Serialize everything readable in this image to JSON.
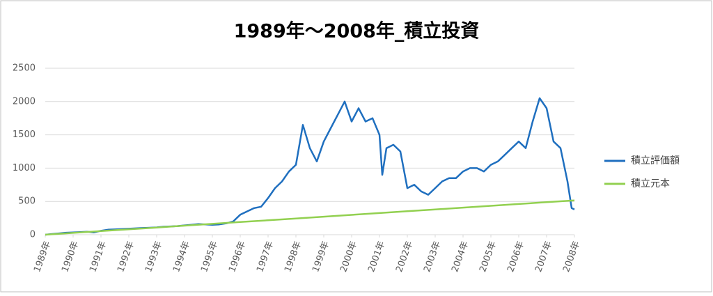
{
  "chart_data": {
    "type": "line",
    "title": "1989年～2008年_積立投資",
    "xlim": [
      1989,
      2008
    ],
    "xticks": [
      {
        "value": 1989,
        "label": "1989年"
      },
      {
        "value": 1990,
        "label": "1990年"
      },
      {
        "value": 1991,
        "label": "1991年"
      },
      {
        "value": 1992,
        "label": "1992年"
      },
      {
        "value": 1993,
        "label": "1993年"
      },
      {
        "value": 1994,
        "label": "1994年"
      },
      {
        "value": 1995,
        "label": "1995年"
      },
      {
        "value": 1996,
        "label": "1996年"
      },
      {
        "value": 1997,
        "label": "1997年"
      },
      {
        "value": 1998,
        "label": "1998年"
      },
      {
        "value": 1999,
        "label": "1999年"
      },
      {
        "value": 2000,
        "label": "2000年"
      },
      {
        "value": 2001,
        "label": "2001年"
      },
      {
        "value": 2002,
        "label": "2002年"
      },
      {
        "value": 2003,
        "label": "2003年"
      },
      {
        "value": 2004,
        "label": "2004年"
      },
      {
        "value": 2005,
        "label": "2005年"
      },
      {
        "value": 2006,
        "label": "2006年"
      },
      {
        "value": 2007,
        "label": "2007年"
      },
      {
        "value": 2008,
        "label": "2008年"
      }
    ],
    "ylim": [
      0,
      2500
    ],
    "yticks": [
      0,
      500,
      1000,
      1500,
      2000,
      2500
    ],
    "grid": true,
    "legend": "right",
    "series": [
      {
        "name": "積立評価額",
        "color": "#1f6fbf",
        "x": [
          1989,
          1989.25,
          1989.5,
          1989.75,
          1990,
          1990.25,
          1990.5,
          1990.75,
          1991,
          1991.25,
          1991.5,
          1991.75,
          1992,
          1992.25,
          1992.5,
          1992.75,
          1993,
          1993.25,
          1993.5,
          1993.75,
          1994,
          1994.25,
          1994.5,
          1994.75,
          1995,
          1995.25,
          1995.5,
          1995.75,
          1996,
          1996.25,
          1996.5,
          1996.75,
          1997,
          1997.25,
          1997.5,
          1997.75,
          1998,
          1998.25,
          1998.5,
          1998.75,
          1999,
          1999.25,
          1999.5,
          1999.75,
          2000,
          2000.25,
          2000.5,
          2000.75,
          2001,
          2001.1,
          2001.25,
          2001.5,
          2001.75,
          2002,
          2002.25,
          2002.5,
          2002.75,
          2003,
          2003.25,
          2003.5,
          2003.75,
          2004,
          2004.25,
          2004.5,
          2004.75,
          2005,
          2005.25,
          2005.5,
          2005.75,
          2006,
          2006.25,
          2006.5,
          2006.75,
          2007,
          2007.25,
          2007.5,
          2007.75,
          2007.9,
          2008
        ],
        "values": [
          0,
          10,
          20,
          30,
          35,
          40,
          45,
          35,
          60,
          75,
          80,
          85,
          90,
          95,
          100,
          105,
          110,
          120,
          125,
          130,
          140,
          150,
          160,
          155,
          150,
          155,
          170,
          200,
          300,
          350,
          400,
          420,
          550,
          700,
          800,
          950,
          1050,
          1650,
          1300,
          1100,
          1400,
          1600,
          1800,
          2000,
          1700,
          1900,
          1700,
          1750,
          1500,
          900,
          1300,
          1350,
          1250,
          700,
          750,
          650,
          600,
          700,
          800,
          850,
          850,
          950,
          1000,
          1000,
          950,
          1050,
          1100,
          1200,
          1300,
          1400,
          1300,
          1700,
          2050,
          1900,
          1400,
          1300,
          800,
          400,
          380
        ]
      },
      {
        "name": "積立元本",
        "color": "#92d050",
        "x": [
          1989,
          1990,
          1991,
          1992,
          1993,
          1994,
          1995,
          1996,
          1997,
          1998,
          1999,
          2000,
          2001,
          2002,
          2003,
          2004,
          2005,
          2006,
          2007,
          2008
        ],
        "values": [
          0,
          27,
          54,
          81,
          108,
          136,
          163,
          190,
          217,
          244,
          271,
          298,
          325,
          352,
          379,
          407,
          434,
          461,
          488,
          515
        ]
      }
    ]
  }
}
